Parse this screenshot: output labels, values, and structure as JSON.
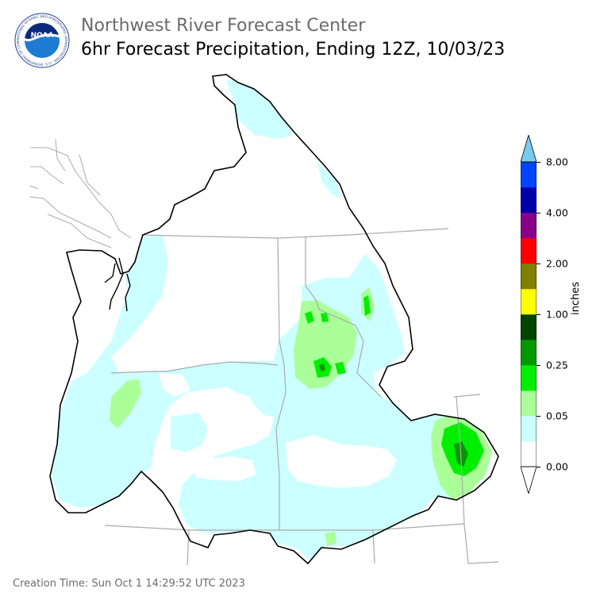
{
  "header": {
    "agency": "Northwest River Forecast Center",
    "product": "6hr Forecast Precipitation, Ending 12Z, 10/03/23"
  },
  "logo": {
    "icon": "noaa-logo-icon",
    "text": "NOAA",
    "ring_text": "NATIONAL OCEANIC AND ATMOSPHERIC ADMINISTRATION · U.S. DEPARTMENT OF COMMERCE"
  },
  "legend": {
    "unit": "inches",
    "ticks": [
      "8.00",
      "4.00",
      "2.00",
      "1.00",
      "0.25",
      "0.05",
      "0.00"
    ],
    "bins": [
      {
        "color": "#ffffff"
      },
      {
        "color": "#ccffff"
      },
      {
        "color": "#aaff99"
      },
      {
        "color": "#00ee00"
      },
      {
        "color": "#009900"
      },
      {
        "color": "#004400"
      },
      {
        "color": "#ffff00"
      },
      {
        "color": "#808000"
      },
      {
        "color": "#ff0000"
      },
      {
        "color": "#880088"
      },
      {
        "color": "#0000aa"
      },
      {
        "color": "#0044ff"
      }
    ],
    "over_color": "#77ccee",
    "under_color": "#ffffff"
  },
  "footer": {
    "creation_time": "Creation Time: Sun Oct 1 14:29:52 UTC 2023"
  }
}
